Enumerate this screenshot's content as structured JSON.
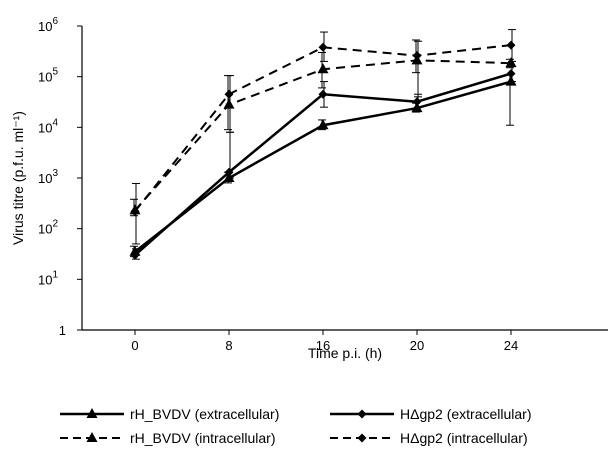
{
  "chart_data": {
    "type": "line",
    "title": "",
    "xlabel": "Time p.i. (h)",
    "ylabel": "Virus titre (p.f.u. ml⁻¹)",
    "y_scale": "log",
    "ylim": [
      1,
      1000000
    ],
    "y_ticks": [
      {
        "value": 1,
        "base": "1",
        "exp": ""
      },
      {
        "value": 10,
        "base": "10",
        "exp": "1"
      },
      {
        "value": 100,
        "base": "10",
        "exp": "2"
      },
      {
        "value": 1000,
        "base": "10",
        "exp": "3"
      },
      {
        "value": 10000,
        "base": "10",
        "exp": "4"
      },
      {
        "value": 100000,
        "base": "10",
        "exp": "5"
      },
      {
        "value": 1000000,
        "base": "10",
        "exp": "6"
      }
    ],
    "categories": [
      "0",
      "8",
      "16",
      "20",
      "24"
    ],
    "grid": false,
    "legend_position": "bottom",
    "series": [
      {
        "name": "rH_BVDV (extracellular)",
        "line": "solid",
        "marker": "triangle",
        "values": [
          35,
          1000,
          11000,
          24000,
          80000
        ],
        "err_low": [
          28,
          800,
          9000,
          20000,
          11000
        ],
        "err_high": [
          45,
          1300,
          14000,
          30000,
          110000
        ]
      },
      {
        "name": "HΔgp2 (extracellular)",
        "line": "solid",
        "marker": "diamond",
        "values": [
          30,
          1300,
          45000,
          32000,
          115000
        ],
        "err_low": [
          25,
          1000,
          25000,
          25000,
          80000
        ],
        "err_high": [
          40,
          8000,
          80000,
          45000,
          160000
        ]
      },
      {
        "name": "rH_BVDV (intracellular)",
        "line": "dashed",
        "marker": "triangle",
        "values": [
          230,
          28000,
          140000,
          210000,
          185000
        ],
        "err_low": [
          180,
          9000,
          60000,
          120000,
          150000
        ],
        "err_high": [
          380,
          105000,
          300000,
          530000,
          220000
        ]
      },
      {
        "name": "HΔgp2 (intracellular)",
        "line": "dashed",
        "marker": "diamond",
        "values": [
          220,
          45000,
          380000,
          260000,
          420000
        ],
        "err_low": [
          50,
          8000,
          200000,
          40000,
          200000
        ],
        "err_high": [
          780,
          105000,
          760000,
          500000,
          850000
        ]
      }
    ]
  }
}
